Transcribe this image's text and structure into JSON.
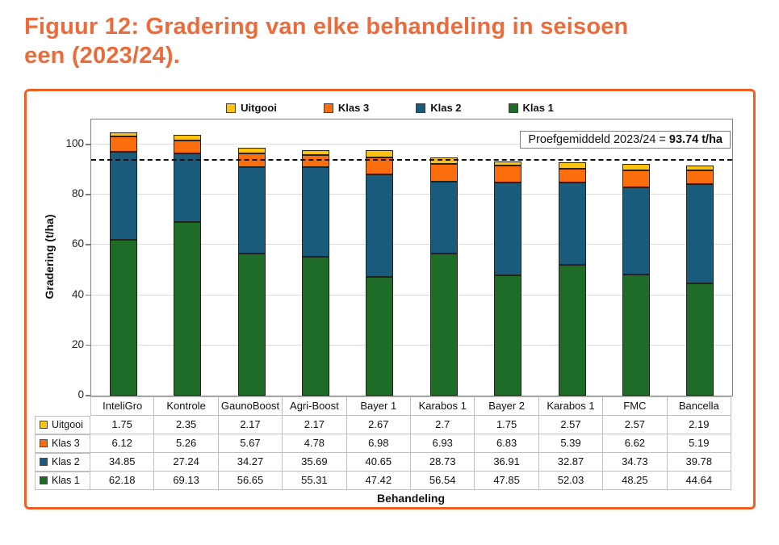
{
  "page": {
    "title_line1": "Figuur 12: Gradering van elke behandeling in seisoen",
    "title_line2": "een (2023/24)."
  },
  "colors": {
    "title_orange": "#ec6b3a",
    "figure_border_orange": "#f15f27",
    "plot_border_gray": "#808080",
    "gridline_gray": "#dcdcdc",
    "bar_outline": "#222222",
    "table_border_gray": "#bfbfbf"
  },
  "chart_data": {
    "type": "bar",
    "stacked": true,
    "categories": [
      "InteliGro",
      "Kontrole",
      "GaunoBoost",
      "Agri-Boost",
      "Bayer 1",
      "Karabos 1",
      "Bayer 2",
      "Karabos 1",
      "FMC",
      "Bancella"
    ],
    "series": [
      {
        "name": "Klas 1",
        "color": "#1e6c27",
        "values": [
          62.18,
          69.13,
          56.65,
          55.31,
          47.42,
          56.54,
          47.85,
          52.03,
          48.25,
          44.64
        ]
      },
      {
        "name": "Klas 2",
        "color": "#1a5a7a",
        "values": [
          34.85,
          27.24,
          34.27,
          35.69,
          40.65,
          28.73,
          36.91,
          32.87,
          34.73,
          39.78
        ]
      },
      {
        "name": "Klas 3",
        "color": "#fb6e0d",
        "values": [
          6.12,
          5.26,
          5.67,
          4.78,
          6.98,
          6.93,
          6.83,
          5.39,
          6.62,
          5.19
        ]
      },
      {
        "name": "Uitgooi",
        "color": "#fec211",
        "values": [
          1.75,
          2.35,
          2.17,
          2.17,
          2.67,
          2.7,
          1.75,
          2.57,
          2.57,
          2.19
        ]
      }
    ],
    "legend_order": [
      "Uitgooi",
      "Klas 3",
      "Klas 2",
      "Klas 1"
    ],
    "xlabel": "Behandeling",
    "ylabel": "Gradering (t/ha)",
    "ylim": [
      0,
      110
    ],
    "yticks": [
      0,
      20,
      40,
      60,
      80,
      100
    ],
    "grid": true,
    "legend_position": "top",
    "table_below": true,
    "reference_line": {
      "value": 93.74,
      "label_prefix": "Proefgemiddeld 2023/24 = ",
      "label_value": "93.74 t/ha"
    }
  }
}
